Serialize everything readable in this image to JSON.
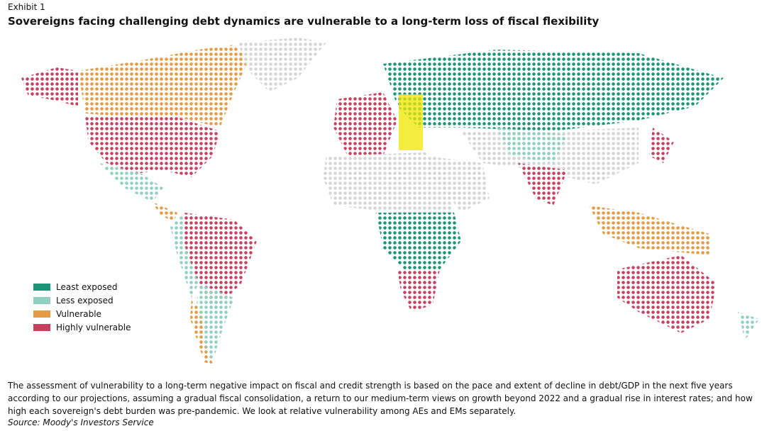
{
  "header": {
    "exhibit": "Exhibit 1",
    "title": "Sovereigns facing challenging debt dynamics are vulnerable to a long-term loss of fiscal flexibility"
  },
  "legend": [
    {
      "label": "Least exposed",
      "color": "#1a9677"
    },
    {
      "label": "Less exposed",
      "color": "#8fd0c0"
    },
    {
      "label": "Vulnerable",
      "color": "#e59a44"
    },
    {
      "label": "Highly vulnerable",
      "color": "#c7405f"
    }
  ],
  "footnote": "The assessment of vulnerability to a long-term negative impact on fiscal and credit strength is based on the pace and extent of decline in debt/GDP in the next five years according to our projections, assuming a gradual fiscal consolidation, a return to our medium-term views on growth beyond 2022 and a gradual rise in interest rates; and how high each sovereign's debt burden was pre-pandemic. We look at relative vulnerability among AEs and EMs separately.",
  "source": "Source: Moody's Investors Service"
}
